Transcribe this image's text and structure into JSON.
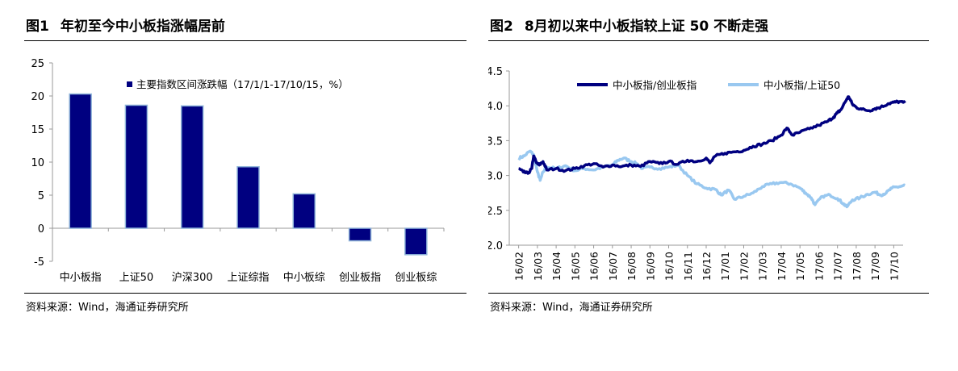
{
  "figures": [
    {
      "number_label": "图1",
      "title": "年初至今中小板指涨幅居前",
      "source": "资料来源：Wind，海通证券研究所"
    },
    {
      "number_label": "图2",
      "title": "8月初以来中小板指较上证 50 不断走强",
      "source": "资料来源：Wind，海通证券研究所"
    }
  ],
  "chart_data": [
    {
      "type": "bar",
      "title": "年初至今中小板指涨幅居前",
      "categories": [
        "中小板指",
        "上证50",
        "沪深300",
        "上证综指",
        "中小板综",
        "创业板指",
        "创业板综"
      ],
      "series": [
        {
          "name": "主要指数区间涨跌幅（17/1/1-17/10/15，%）",
          "values": [
            20.3,
            18.6,
            18.5,
            9.3,
            5.2,
            -1.9,
            -4.0
          ]
        }
      ],
      "ylim": [
        -5,
        25
      ],
      "yticks": [
        -5,
        0,
        5,
        10,
        15,
        20,
        25
      ],
      "legend": "top-center",
      "colors": {
        "bar": "#000080",
        "bar_edge": "#8fb4d9",
        "axis": "#999999"
      }
    },
    {
      "type": "line",
      "title": "8月初以来中小板指较上证 50 不断走强",
      "xlabels": [
        "16/02",
        "16/03",
        "16/04",
        "16/05",
        "16/06",
        "16/07",
        "16/08",
        "16/09",
        "16/10",
        "16/11",
        "16/12",
        "17/01",
        "17/02",
        "17/03",
        "17/04",
        "17/05",
        "17/06",
        "17/07",
        "17/08",
        "17/09",
        "17/10"
      ],
      "ylim": [
        2.0,
        4.5
      ],
      "yticks": [
        "2.0",
        "2.5",
        "3.0",
        "3.5",
        "4.0",
        "4.5"
      ],
      "legend": "top",
      "series": [
        {
          "name": "中小板指/创业板指",
          "color": "#000080",
          "keypoints": [
            [
              0,
              3.1
            ],
            [
              0.25,
              3.05
            ],
            [
              0.5,
              3.03
            ],
            [
              0.7,
              3.1
            ],
            [
              0.8,
              3.28
            ],
            [
              0.95,
              3.18
            ],
            [
              1.1,
              3.15
            ],
            [
              1.3,
              3.2
            ],
            [
              1.5,
              3.08
            ],
            [
              2,
              3.1
            ],
            [
              2.5,
              3.07
            ],
            [
              3,
              3.1
            ],
            [
              3.5,
              3.14
            ],
            [
              4,
              3.17
            ],
            [
              4.5,
              3.12
            ],
            [
              5,
              3.15
            ],
            [
              5.5,
              3.13
            ],
            [
              6,
              3.15
            ],
            [
              6.5,
              3.13
            ],
            [
              7,
              3.2
            ],
            [
              7.5,
              3.17
            ],
            [
              8,
              3.2
            ],
            [
              8.5,
              3.16
            ],
            [
              9,
              3.22
            ],
            [
              9.5,
              3.2
            ],
            [
              10,
              3.25
            ],
            [
              10.2,
              3.18
            ],
            [
              10.5,
              3.28
            ],
            [
              11,
              3.32
            ],
            [
              11.5,
              3.34
            ],
            [
              12,
              3.36
            ],
            [
              12.5,
              3.42
            ],
            [
              13,
              3.45
            ],
            [
              13.5,
              3.5
            ],
            [
              14,
              3.58
            ],
            [
              14.3,
              3.68
            ],
            [
              14.6,
              3.58
            ],
            [
              15,
              3.62
            ],
            [
              15.5,
              3.67
            ],
            [
              16,
              3.72
            ],
            [
              16.5,
              3.78
            ],
            [
              16.8,
              3.84
            ],
            [
              17,
              3.9
            ],
            [
              17.2,
              3.95
            ],
            [
              17.5,
              4.1
            ],
            [
              17.6,
              4.13
            ],
            [
              17.8,
              4.02
            ],
            [
              18,
              3.98
            ],
            [
              18.3,
              3.95
            ],
            [
              18.7,
              3.93
            ],
            [
              19,
              3.96
            ],
            [
              19.3,
              3.98
            ],
            [
              19.7,
              4.03
            ],
            [
              20,
              4.05
            ],
            [
              20.3,
              4.06
            ],
            [
              20.6,
              4.04
            ]
          ]
        },
        {
          "name": "中小板指/上证50",
          "color": "#99c8f0",
          "keypoints": [
            [
              0,
              3.25
            ],
            [
              0.3,
              3.28
            ],
            [
              0.6,
              3.35
            ],
            [
              0.8,
              3.3
            ],
            [
              1,
              3.05
            ],
            [
              1.15,
              2.93
            ],
            [
              1.3,
              3.05
            ],
            [
              1.5,
              3.12
            ],
            [
              2,
              3.1
            ],
            [
              2.5,
              3.14
            ],
            [
              3,
              3.07
            ],
            [
              3.5,
              3.1
            ],
            [
              4,
              3.08
            ],
            [
              4.5,
              3.12
            ],
            [
              5,
              3.15
            ],
            [
              5.3,
              3.22
            ],
            [
              5.6,
              3.25
            ],
            [
              6,
              3.2
            ],
            [
              6.3,
              3.17
            ],
            [
              6.6,
              3.1
            ],
            [
              7,
              3.12
            ],
            [
              7.5,
              3.1
            ],
            [
              8,
              3.12
            ],
            [
              8.5,
              3.15
            ],
            [
              9,
              3.0
            ],
            [
              9.5,
              2.88
            ],
            [
              10,
              2.82
            ],
            [
              10.5,
              2.8
            ],
            [
              10.8,
              2.72
            ],
            [
              11.2,
              2.79
            ],
            [
              11.5,
              2.66
            ],
            [
              12,
              2.7
            ],
            [
              12.5,
              2.75
            ],
            [
              13,
              2.84
            ],
            [
              13.5,
              2.88
            ],
            [
              14,
              2.9
            ],
            [
              14.5,
              2.88
            ],
            [
              15,
              2.82
            ],
            [
              15.3,
              2.75
            ],
            [
              15.6,
              2.68
            ],
            [
              15.8,
              2.58
            ],
            [
              16.2,
              2.7
            ],
            [
              16.6,
              2.72
            ],
            [
              17,
              2.67
            ],
            [
              17.3,
              2.6
            ],
            [
              17.5,
              2.55
            ],
            [
              17.8,
              2.65
            ],
            [
              18.2,
              2.68
            ],
            [
              18.6,
              2.73
            ],
            [
              19,
              2.76
            ],
            [
              19.3,
              2.72
            ],
            [
              19.6,
              2.75
            ],
            [
              19.9,
              2.82
            ],
            [
              20.3,
              2.84
            ],
            [
              20.6,
              2.86
            ]
          ]
        }
      ]
    }
  ]
}
